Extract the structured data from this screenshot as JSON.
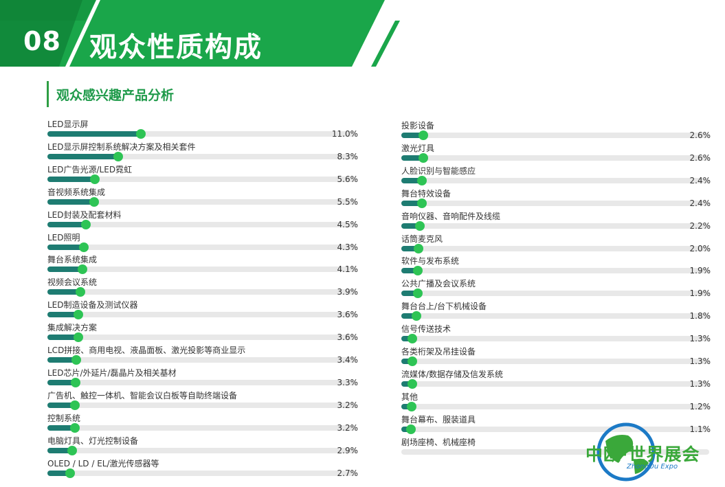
{
  "header": {
    "section_number": "08",
    "section_title": "观众性质构成",
    "subheading": "观众感兴趣产品分析"
  },
  "colors": {
    "banner_green": "#1aa64a",
    "bar_fill": "#1e7c72",
    "bar_dot": "#2ec455",
    "bar_track": "#e8e8e8"
  },
  "chart_data": {
    "type": "bar",
    "title": "观众感兴趣产品分析",
    "unit": "%",
    "left_column": [
      {
        "label": "LED显示屏",
        "value": 11.0,
        "value_text": "11.0%"
      },
      {
        "label": "LED显示屏控制系统解决方案及相关套件",
        "value": 8.3,
        "value_text": "8.3%"
      },
      {
        "label": "LED广告光源/LED霓虹",
        "value": 5.6,
        "value_text": "5.6%"
      },
      {
        "label": "音视频系统集成",
        "value": 5.5,
        "value_text": "5.5%"
      },
      {
        "label": "LED封装及配套材料",
        "value": 4.5,
        "value_text": "4.5%"
      },
      {
        "label": "LED照明",
        "value": 4.3,
        "value_text": "4.3%"
      },
      {
        "label": "舞台系统集成",
        "value": 4.1,
        "value_text": "4.1%"
      },
      {
        "label": "视频会议系统",
        "value": 3.9,
        "value_text": "3.9%"
      },
      {
        "label": "LED制造设备及测试仪器",
        "value": 3.6,
        "value_text": "3.6%"
      },
      {
        "label": "集成解决方案",
        "value": 3.6,
        "value_text": "3.6%"
      },
      {
        "label": "LCD拼接、商用电视、液晶面板、激光投影等商业显示",
        "value": 3.4,
        "value_text": "3.4%"
      },
      {
        "label": "LED芯片/外延片/磊晶片及相关基材",
        "value": 3.3,
        "value_text": "3.3%"
      },
      {
        "label": "广告机、触控一体机、智能会议白板等自助终端设备",
        "value": 3.2,
        "value_text": "3.2%"
      },
      {
        "label": "控制系统",
        "value": 3.2,
        "value_text": "3.2%"
      },
      {
        "label": "电脑灯具、灯光控制设备",
        "value": 2.9,
        "value_text": "2.9%"
      },
      {
        "label": "OLED / LD / EL/激光传感器等",
        "value": 2.7,
        "value_text": "2.7%"
      }
    ],
    "right_column": [
      {
        "label": "投影设备",
        "value": 2.6,
        "value_text": "2.6%"
      },
      {
        "label": "激光灯具",
        "value": 2.6,
        "value_text": "2.6%"
      },
      {
        "label": "人脸识别与智能感应",
        "value": 2.4,
        "value_text": "2.4%"
      },
      {
        "label": "舞台特效设备",
        "value": 2.4,
        "value_text": "2.4%"
      },
      {
        "label": "音响仪器、音响配件及线缆",
        "value": 2.2,
        "value_text": "2.2%"
      },
      {
        "label": "话筒麦克风",
        "value": 2.0,
        "value_text": "2.0%"
      },
      {
        "label": "软件与发布系统",
        "value": 1.9,
        "value_text": "1.9%"
      },
      {
        "label": "公共广播及会议系统",
        "value": 1.9,
        "value_text": "1.9%"
      },
      {
        "label": "舞台台上/台下机械设备",
        "value": 1.8,
        "value_text": "1.8%"
      },
      {
        "label": "信号传送技术",
        "value": 1.3,
        "value_text": "1.3%"
      },
      {
        "label": "各类桁架及吊挂设备",
        "value": 1.3,
        "value_text": "1.3%"
      },
      {
        "label": "流媒体/数据存储及信发系统",
        "value": 1.3,
        "value_text": "1.3%"
      },
      {
        "label": "其他",
        "value": 1.2,
        "value_text": "1.2%"
      },
      {
        "label": "舞台幕布、服装道具",
        "value": 1.1,
        "value_text": "1.1%"
      },
      {
        "label": "剧场座椅、机械座椅",
        "value": null,
        "value_text": ""
      }
    ]
  },
  "logo": {
    "name": "中欧·世界展会",
    "subtitle": "ZhongOu Expo"
  }
}
